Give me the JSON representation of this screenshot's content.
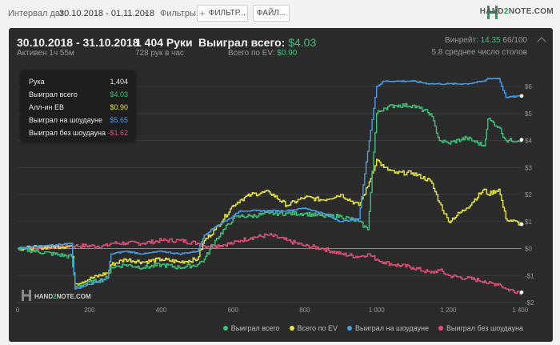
{
  "toolbar": {
    "date_label": "Интервал дат:",
    "date_value": "30.10.2018 - 01.11.2018",
    "filters_label": "Фильтры:",
    "filter_button": "ФИЛЬТР...",
    "file_button": "ФАЙЛ...",
    "brand_hand": "HAND",
    "brand_two": "2",
    "brand_note": "NOTE.COM"
  },
  "header": {
    "date_range": "30.10.2018 - 31.10.2018",
    "active": "Активен 1ч 55м",
    "hands": "1 404 Руки",
    "hands_per_hour": "728 рук в час",
    "won_label": "Выиграл всего:",
    "won_value": "$4.03",
    "ev_label": "Всего по EV:",
    "ev_value": "$0.90",
    "winrate_label": "Винрейт:",
    "winrate_value": "14.35",
    "winrate_rest": "66/100",
    "tables": "5.8 среднее число столов"
  },
  "tooltip": {
    "rows": [
      {
        "label": "Рука",
        "value": "1,404",
        "color": "#e8e8e8"
      },
      {
        "label": "Выиграл всего",
        "value": "$4.03",
        "color": "#3ec27a"
      },
      {
        "label": "Алл-ин EB",
        "value": "$0.90",
        "color": "#e6e64a"
      },
      {
        "label": "Выиграл на шоудауне",
        "value": "$5.65",
        "color": "#4a9ee8"
      },
      {
        "label": "Выиграл без шоудауна",
        "value": "-$1.62",
        "color": "#e0507a"
      }
    ]
  },
  "watermark": {
    "hand": "HAND",
    "two": "2",
    "note": "NOTE.COM"
  },
  "chart_data": {
    "type": "line",
    "title": "",
    "xlabel": "",
    "ylabel": "",
    "xlim": [
      0,
      1404
    ],
    "ylim": [
      -2,
      6.5
    ],
    "x_ticks": [
      0,
      200,
      400,
      600,
      800,
      1000,
      1200,
      1400
    ],
    "x_tick_labels": [
      "0",
      "200",
      "400",
      "600",
      "800",
      "1 000",
      "1 200",
      "1 400"
    ],
    "y_ticks": [
      -2,
      -1,
      0,
      1,
      2,
      3,
      4,
      5,
      6
    ],
    "y_tick_labels": [
      "-$2",
      "-$1",
      "$0",
      "$1",
      "$2",
      "$3",
      "$4",
      "$5",
      "$6"
    ],
    "grid": true,
    "legend_position": "bottom-right",
    "series": [
      {
        "name": "Выиграл всего",
        "color": "#3ec27a",
        "x": [
          0,
          150,
          160,
          250,
          260,
          300,
          350,
          400,
          450,
          500,
          520,
          550,
          600,
          620,
          650,
          700,
          750,
          800,
          850,
          900,
          950,
          975,
          1000,
          1020,
          1050,
          1100,
          1150,
          1175,
          1200,
          1250,
          1300,
          1310,
          1340,
          1360,
          1404
        ],
        "y": [
          0,
          -0.3,
          -1.4,
          -1.1,
          -0.7,
          -0.6,
          -0.7,
          -0.6,
          -0.7,
          -0.6,
          -0.4,
          0.3,
          1.1,
          1.2,
          1.2,
          1.3,
          1.3,
          1.3,
          1.2,
          1.2,
          1.0,
          0.7,
          5.0,
          5.2,
          5.3,
          5.3,
          5.0,
          4.0,
          3.9,
          4.1,
          3.8,
          4.8,
          4.5,
          4.0,
          4.03
        ]
      },
      {
        "name": "Всего по EV",
        "color": "#e6e64a",
        "x": [
          0,
          150,
          160,
          250,
          260,
          300,
          350,
          400,
          450,
          500,
          520,
          550,
          600,
          620,
          650,
          700,
          750,
          800,
          850,
          900,
          950,
          975,
          1000,
          1020,
          1050,
          1100,
          1150,
          1175,
          1200,
          1250,
          1300,
          1310,
          1340,
          1360,
          1404
        ],
        "y": [
          0,
          0.1,
          -1.3,
          -0.9,
          -0.6,
          -0.4,
          -0.5,
          -0.4,
          -0.5,
          -0.4,
          0.3,
          0.7,
          1.6,
          1.8,
          2.0,
          2.1,
          1.6,
          1.9,
          1.8,
          2.0,
          1.6,
          2.3,
          3.3,
          3.0,
          2.8,
          2.8,
          2.5,
          1.7,
          1.0,
          1.5,
          2.2,
          2.0,
          2.2,
          1.1,
          0.9
        ]
      },
      {
        "name": "Выиграл на шоудауне",
        "color": "#4a9ee8",
        "x": [
          0,
          150,
          160,
          250,
          260,
          300,
          350,
          400,
          450,
          500,
          520,
          550,
          600,
          620,
          650,
          700,
          750,
          800,
          850,
          900,
          950,
          975,
          1000,
          1020,
          1050,
          1100,
          1150,
          1175,
          1200,
          1250,
          1300,
          1310,
          1340,
          1360,
          1404
        ],
        "y": [
          0,
          0.2,
          -1.5,
          -1.1,
          -0.2,
          -0.1,
          -0.2,
          -0.1,
          -0.2,
          -0.1,
          0.5,
          0.8,
          1.2,
          1.4,
          1.4,
          1.4,
          1.4,
          1.5,
          1.3,
          1.0,
          1.1,
          3.6,
          6.0,
          6.2,
          6.2,
          6.2,
          6.1,
          6.1,
          6.1,
          6.1,
          6.2,
          6.3,
          6.3,
          5.6,
          5.65
        ]
      },
      {
        "name": "Выиграл без шоудауна",
        "color": "#e0507a",
        "x": [
          0,
          150,
          160,
          250,
          260,
          300,
          350,
          400,
          450,
          500,
          520,
          550,
          600,
          620,
          650,
          700,
          750,
          800,
          850,
          900,
          950,
          975,
          1000,
          1020,
          1050,
          1100,
          1150,
          1175,
          1200,
          1250,
          1300,
          1310,
          1340,
          1360,
          1404
        ],
        "y": [
          0,
          0.1,
          0.1,
          0.1,
          0.2,
          0.2,
          0.2,
          0.3,
          0.3,
          0.2,
          0.1,
          0.1,
          0.2,
          0.3,
          0.4,
          0.5,
          0.3,
          0.1,
          0.0,
          -0.2,
          -0.3,
          -0.2,
          -0.4,
          -0.5,
          -0.6,
          -0.7,
          -0.9,
          -0.8,
          -1.0,
          -1.1,
          -1.2,
          -1.3,
          -1.3,
          -1.5,
          -1.62
        ]
      }
    ]
  }
}
